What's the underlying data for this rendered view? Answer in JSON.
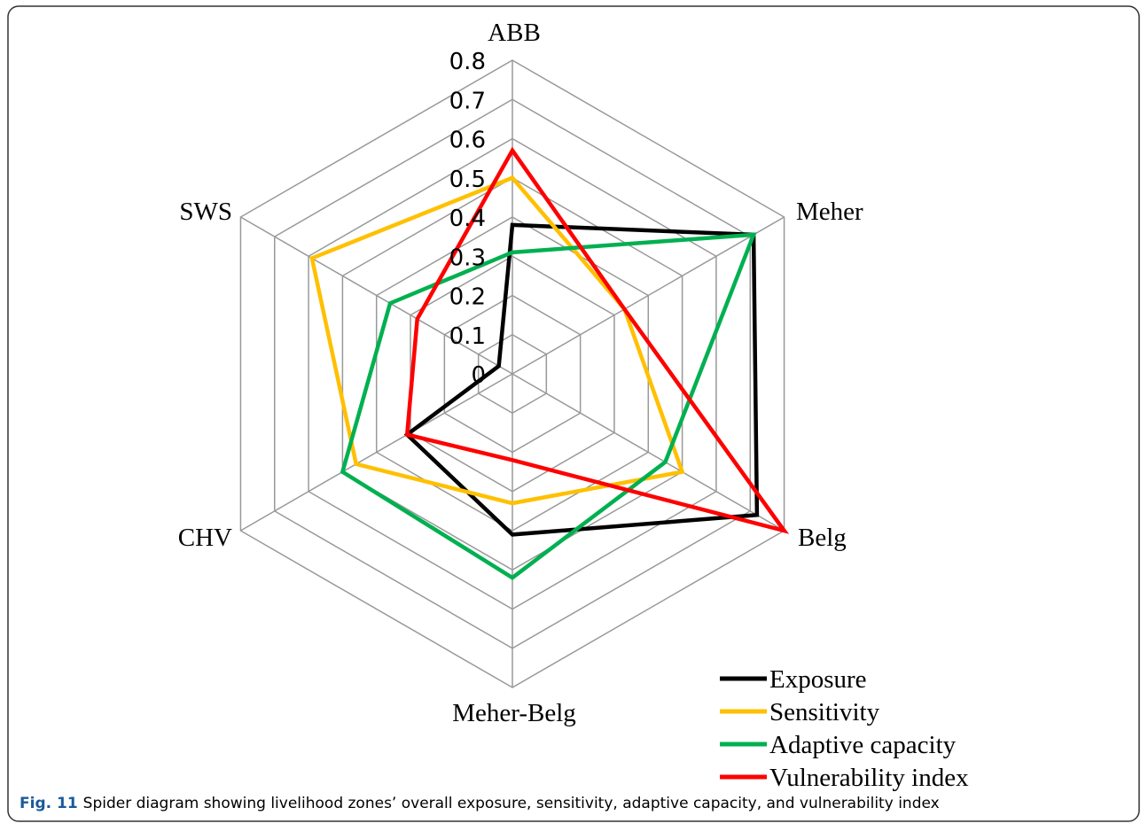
{
  "chart_data": {
    "type": "radar",
    "categories": [
      "ABB",
      "Meher",
      "Belg",
      "Meher-Belg",
      "CHV",
      "SWS"
    ],
    "series": [
      {
        "name": "Exposure",
        "color": "#000000",
        "values": [
          0.38,
          0.71,
          0.72,
          0.41,
          0.31,
          0.04
        ]
      },
      {
        "name": "Sensitivity",
        "color": "#ffc000",
        "values": [
          0.5,
          0.33,
          0.5,
          0.33,
          0.46,
          0.59
        ]
      },
      {
        "name": "Adaptive capacity",
        "color": "#00b050",
        "values": [
          0.31,
          0.71,
          0.45,
          0.52,
          0.5,
          0.36
        ]
      },
      {
        "name": "Vulnerability index",
        "color": "#ff0000",
        "values": [
          0.57,
          0.33,
          0.8,
          0.22,
          0.31,
          0.28
        ]
      }
    ],
    "ylim": [
      0,
      0.8
    ],
    "yticks": [
      0,
      0.1,
      0.2,
      0.3,
      0.4,
      0.5,
      0.6,
      0.7,
      0.8
    ],
    "grid": true,
    "legend": "lower right"
  },
  "caption_label": "Fig. 11",
  "caption": "Spider diagram showing livelihood zones’ overall exposure, sensitivity, adaptive capacity, and vulnerability index"
}
